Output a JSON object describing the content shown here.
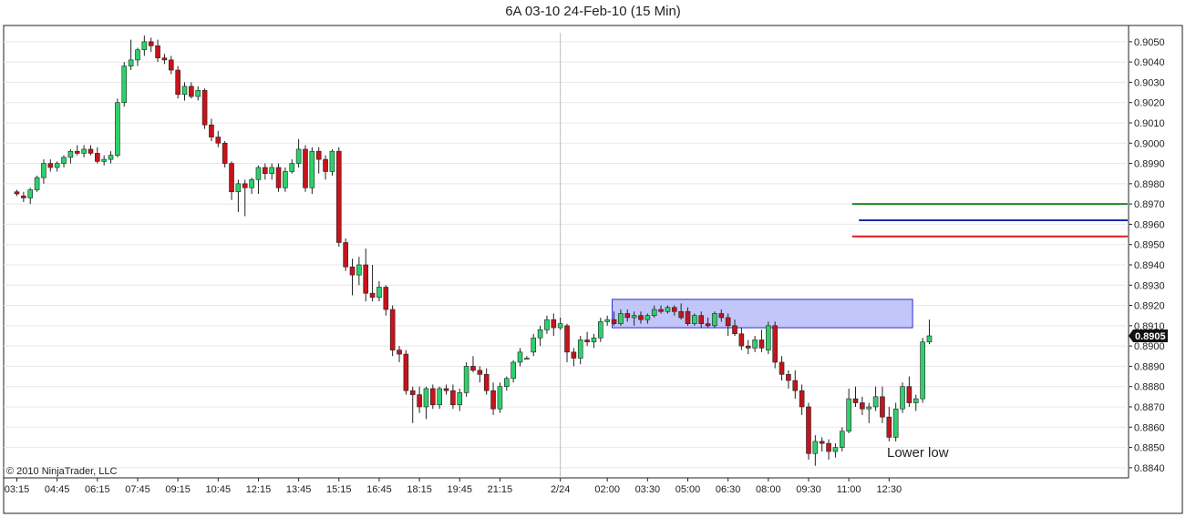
{
  "chart_data": {
    "type": "candlestick",
    "title": "6A 03-10  24-Feb-10 (15 Min)",
    "copyright": "© 2010 NinjaTrader, LLC",
    "annotation": "Lower low",
    "last_price": 0.8905,
    "last_price_label": "0.8905",
    "ylim": [
      0.8835,
      0.9058
    ],
    "y_ticks": [
      0.884,
      0.885,
      0.886,
      0.887,
      0.888,
      0.889,
      0.89,
      0.891,
      0.892,
      0.893,
      0.894,
      0.895,
      0.896,
      0.897,
      0.898,
      0.899,
      0.9,
      0.901,
      0.902,
      0.903,
      0.904,
      0.905
    ],
    "y_tick_labels": [
      "0.8840",
      "0.8850",
      "0.8860",
      "0.8870",
      "0.8880",
      "0.8890",
      "0.8900",
      "0.8910",
      "0.8920",
      "0.8930",
      "0.8940",
      "0.8950",
      "0.8960",
      "0.8970",
      "0.8980",
      "0.8990",
      "0.9000",
      "0.9010",
      "0.9020",
      "0.9030",
      "0.9040",
      "0.9050"
    ],
    "x_tick_labels": [
      {
        "label": "03:15",
        "bar": 0
      },
      {
        "label": "04:45",
        "bar": 6
      },
      {
        "label": "06:15",
        "bar": 12
      },
      {
        "label": "07:45",
        "bar": 18
      },
      {
        "label": "09:15",
        "bar": 24
      },
      {
        "label": "10:45",
        "bar": 30
      },
      {
        "label": "12:15",
        "bar": 36
      },
      {
        "label": "13:45",
        "bar": 42
      },
      {
        "label": "15:15",
        "bar": 48
      },
      {
        "label": "16:45",
        "bar": 54
      },
      {
        "label": "18:15",
        "bar": 60
      },
      {
        "label": "19:45",
        "bar": 66
      },
      {
        "label": "21:15",
        "bar": 72
      },
      {
        "label": "2/24",
        "bar": 81
      },
      {
        "label": "02:00",
        "bar": 88
      },
      {
        "label": "03:30",
        "bar": 94
      },
      {
        "label": "05:00",
        "bar": 100
      },
      {
        "label": "06:30",
        "bar": 106
      },
      {
        "label": "08:00",
        "bar": 112
      },
      {
        "label": "09:30",
        "bar": 118
      },
      {
        "label": "11:00",
        "bar": 124
      },
      {
        "label": "12:30",
        "bar": 130
      }
    ],
    "session_break_bar": 81,
    "colors": {
      "up": "#2fd06b",
      "down": "#c4141c",
      "wick": "#222222",
      "grid": "#e8e8e8",
      "zone_fill": "#b8bcf8",
      "zone_stroke": "#2a2ad0"
    },
    "levels": [
      {
        "price": 0.897,
        "color": "#1a8a1a",
        "from_bar": 124.5,
        "to_bar": 134
      },
      {
        "price": 0.8962,
        "color": "#1a2ab0",
        "from_bar": 125.5,
        "to_bar": 134
      },
      {
        "price": 0.8954,
        "color": "#e01a1a",
        "from_bar": 124.5,
        "to_bar": 134
      }
    ],
    "zone": {
      "from_bar": 89,
      "to_bar": 133.5,
      "top": 0.8923,
      "bottom": 0.8909
    },
    "ohlc": [
      [
        0.8976,
        0.8977,
        0.8974,
        0.8975
      ],
      [
        0.8974,
        0.8976,
        0.8971,
        0.8973
      ],
      [
        0.8973,
        0.8978,
        0.897,
        0.8977
      ],
      [
        0.8977,
        0.8984,
        0.8976,
        0.8983
      ],
      [
        0.8983,
        0.8992,
        0.898,
        0.899
      ],
      [
        0.899,
        0.8992,
        0.8986,
        0.8988
      ],
      [
        0.8988,
        0.8991,
        0.8986,
        0.899
      ],
      [
        0.899,
        0.8994,
        0.8988,
        0.8993
      ],
      [
        0.8993,
        0.8997,
        0.899,
        0.8996
      ],
      [
        0.8996,
        0.8999,
        0.8994,
        0.8995
      ],
      [
        0.8995,
        0.8999,
        0.8993,
        0.8997
      ],
      [
        0.8997,
        0.8999,
        0.8994,
        0.8995
      ],
      [
        0.8995,
        0.8998,
        0.899,
        0.8991
      ],
      [
        0.8991,
        0.8994,
        0.8989,
        0.8992
      ],
      [
        0.8992,
        0.8996,
        0.899,
        0.8994
      ],
      [
        0.8994,
        0.9022,
        0.8993,
        0.902
      ],
      [
        0.902,
        0.904,
        0.9018,
        0.9038
      ],
      [
        0.9038,
        0.9051,
        0.9036,
        0.9041
      ],
      [
        0.9041,
        0.9047,
        0.9038,
        0.9046
      ],
      [
        0.9046,
        0.9053,
        0.9043,
        0.905
      ],
      [
        0.905,
        0.9052,
        0.9045,
        0.9048
      ],
      [
        0.9048,
        0.9051,
        0.904,
        0.9042
      ],
      [
        0.9042,
        0.9044,
        0.9039,
        0.9041
      ],
      [
        0.9041,
        0.9043,
        0.9034,
        0.9036
      ],
      [
        0.9036,
        0.9038,
        0.9022,
        0.9024
      ],
      [
        0.9024,
        0.903,
        0.9021,
        0.9028
      ],
      [
        0.9028,
        0.903,
        0.9022,
        0.9023
      ],
      [
        0.9023,
        0.9028,
        0.9021,
        0.9026
      ],
      [
        0.9026,
        0.9027,
        0.9007,
        0.9009
      ],
      [
        0.9009,
        0.9012,
        0.9001,
        0.9003
      ],
      [
        0.9003,
        0.9006,
        0.8998,
        0.9
      ],
      [
        0.9,
        0.9001,
        0.8988,
        0.899
      ],
      [
        0.899,
        0.8991,
        0.8972,
        0.8976
      ],
      [
        0.8976,
        0.8982,
        0.8966,
        0.898
      ],
      [
        0.898,
        0.8982,
        0.8964,
        0.8978
      ],
      [
        0.8978,
        0.8983,
        0.8975,
        0.8982
      ],
      [
        0.8982,
        0.8989,
        0.8975,
        0.8988
      ],
      [
        0.8988,
        0.899,
        0.8982,
        0.8985
      ],
      [
        0.8985,
        0.899,
        0.8982,
        0.8988
      ],
      [
        0.8988,
        0.899,
        0.8976,
        0.8978
      ],
      [
        0.8978,
        0.8988,
        0.8976,
        0.8986
      ],
      [
        0.8986,
        0.8992,
        0.8985,
        0.899
      ],
      [
        0.899,
        0.9002,
        0.8988,
        0.8997
      ],
      [
        0.8997,
        0.8999,
        0.8976,
        0.8978
      ],
      [
        0.8978,
        0.8998,
        0.8975,
        0.8996
      ],
      [
        0.8996,
        0.8998,
        0.8985,
        0.8992
      ],
      [
        0.8992,
        0.8994,
        0.8982,
        0.8986
      ],
      [
        0.8986,
        0.8997,
        0.8984,
        0.8996
      ],
      [
        0.8996,
        0.8998,
        0.8949,
        0.8951
      ],
      [
        0.8951,
        0.8953,
        0.8937,
        0.8939
      ],
      [
        0.8939,
        0.8943,
        0.8925,
        0.8935
      ],
      [
        0.8935,
        0.8944,
        0.893,
        0.894
      ],
      [
        0.894,
        0.8948,
        0.8922,
        0.8926
      ],
      [
        0.8926,
        0.894,
        0.8922,
        0.8924
      ],
      [
        0.8924,
        0.8932,
        0.8922,
        0.8929
      ],
      [
        0.8929,
        0.893,
        0.8915,
        0.8918
      ],
      [
        0.8918,
        0.892,
        0.8895,
        0.8898
      ],
      [
        0.8898,
        0.89,
        0.8892,
        0.8896
      ],
      [
        0.8896,
        0.8898,
        0.8876,
        0.8878
      ],
      [
        0.8878,
        0.888,
        0.8862,
        0.8876
      ],
      [
        0.8876,
        0.888,
        0.8867,
        0.887
      ],
      [
        0.887,
        0.888,
        0.8864,
        0.8879
      ],
      [
        0.8879,
        0.8881,
        0.8869,
        0.8871
      ],
      [
        0.8871,
        0.888,
        0.8869,
        0.8879
      ],
      [
        0.8879,
        0.8881,
        0.8876,
        0.8878
      ],
      [
        0.8878,
        0.8881,
        0.8869,
        0.8871
      ],
      [
        0.8871,
        0.8879,
        0.8868,
        0.8877
      ],
      [
        0.8877,
        0.8892,
        0.8875,
        0.889
      ],
      [
        0.889,
        0.8895,
        0.8887,
        0.8888
      ],
      [
        0.8888,
        0.889,
        0.8882,
        0.8886
      ],
      [
        0.8886,
        0.8889,
        0.8876,
        0.8878
      ],
      [
        0.8878,
        0.8882,
        0.8866,
        0.8869
      ],
      [
        0.8869,
        0.8882,
        0.8867,
        0.888
      ],
      [
        0.888,
        0.8885,
        0.8878,
        0.8884
      ],
      [
        0.8884,
        0.8893,
        0.8882,
        0.8892
      ],
      [
        0.8892,
        0.8899,
        0.889,
        0.8897
      ],
      [
        0.8894,
        0.8895,
        0.8894,
        0.8894
      ],
      [
        0.8897,
        0.8906,
        0.8895,
        0.8904
      ],
      [
        0.8904,
        0.891,
        0.89,
        0.8908
      ],
      [
        0.8908,
        0.8915,
        0.8906,
        0.8913
      ],
      [
        0.8913,
        0.8916,
        0.8905,
        0.8909
      ],
      [
        0.8909,
        0.8914,
        0.8908,
        0.8911
      ],
      [
        0.891,
        0.8911,
        0.8892,
        0.8897
      ],
      [
        0.8897,
        0.8899,
        0.889,
        0.8894
      ],
      [
        0.8894,
        0.8905,
        0.8891,
        0.8903
      ],
      [
        0.8903,
        0.8907,
        0.89,
        0.8902
      ],
      [
        0.8902,
        0.8906,
        0.8899,
        0.8904
      ],
      [
        0.8904,
        0.8914,
        0.8902,
        0.8912
      ],
      [
        0.8912,
        0.8915,
        0.891,
        0.8913
      ],
      [
        0.8913,
        0.8917,
        0.891,
        0.8911
      ],
      [
        0.8911,
        0.8918,
        0.891,
        0.8916
      ],
      [
        0.8916,
        0.8918,
        0.8912,
        0.8914
      ],
      [
        0.8914,
        0.8917,
        0.891,
        0.8915
      ],
      [
        0.8915,
        0.8917,
        0.8911,
        0.8913
      ],
      [
        0.8913,
        0.8916,
        0.8911,
        0.8915
      ],
      [
        0.8915,
        0.892,
        0.8914,
        0.8918
      ],
      [
        0.8918,
        0.892,
        0.8916,
        0.8917
      ],
      [
        0.8917,
        0.892,
        0.8916,
        0.8919
      ],
      [
        0.8919,
        0.892,
        0.8915,
        0.8917
      ],
      [
        0.8917,
        0.8921,
        0.8913,
        0.8914
      ],
      [
        0.8917,
        0.8919,
        0.891,
        0.8911
      ],
      [
        0.8911,
        0.8916,
        0.891,
        0.8915
      ],
      [
        0.8915,
        0.8917,
        0.8909,
        0.8911
      ],
      [
        0.8911,
        0.8914,
        0.8909,
        0.891
      ],
      [
        0.891,
        0.8917,
        0.8909,
        0.8916
      ],
      [
        0.8916,
        0.8918,
        0.8912,
        0.8914
      ],
      [
        0.8914,
        0.8916,
        0.8905,
        0.891
      ],
      [
        0.891,
        0.8913,
        0.8905,
        0.8906
      ],
      [
        0.8906,
        0.8909,
        0.8898,
        0.89
      ],
      [
        0.89,
        0.8903,
        0.8896,
        0.8899
      ],
      [
        0.8899,
        0.8905,
        0.8897,
        0.8903
      ],
      [
        0.8903,
        0.8908,
        0.8897,
        0.8899
      ],
      [
        0.8898,
        0.8912,
        0.8896,
        0.891
      ],
      [
        0.891,
        0.8912,
        0.8889,
        0.8892
      ],
      [
        0.8892,
        0.8895,
        0.8883,
        0.8886
      ],
      [
        0.8886,
        0.8888,
        0.8879,
        0.8883
      ],
      [
        0.8883,
        0.8888,
        0.8874,
        0.8878
      ],
      [
        0.8878,
        0.8881,
        0.8866,
        0.887
      ],
      [
        0.887,
        0.8872,
        0.8844,
        0.8847
      ],
      [
        0.8847,
        0.8856,
        0.8841,
        0.8853
      ],
      [
        0.8853,
        0.8855,
        0.8848,
        0.8852
      ],
      [
        0.8852,
        0.8854,
        0.8844,
        0.8848
      ],
      [
        0.8848,
        0.8852,
        0.8845,
        0.885
      ],
      [
        0.885,
        0.886,
        0.8848,
        0.8858
      ],
      [
        0.8858,
        0.8879,
        0.8857,
        0.8874
      ],
      [
        0.8874,
        0.888,
        0.887,
        0.8872
      ],
      [
        0.8872,
        0.8875,
        0.8866,
        0.8869
      ],
      [
        0.8869,
        0.8872,
        0.8862,
        0.887
      ],
      [
        0.887,
        0.888,
        0.8868,
        0.8875
      ],
      [
        0.8875,
        0.888,
        0.8862,
        0.8865
      ],
      [
        0.8865,
        0.887,
        0.8853,
        0.8855
      ],
      [
        0.8855,
        0.8872,
        0.8853,
        0.8869
      ],
      [
        0.8869,
        0.8882,
        0.8867,
        0.888
      ],
      [
        0.888,
        0.8885,
        0.887,
        0.8872
      ],
      [
        0.8872,
        0.8876,
        0.8868,
        0.8874
      ],
      [
        0.8874,
        0.8904,
        0.8872,
        0.8902
      ],
      [
        0.8902,
        0.8913,
        0.8901,
        0.8905
      ]
    ]
  }
}
